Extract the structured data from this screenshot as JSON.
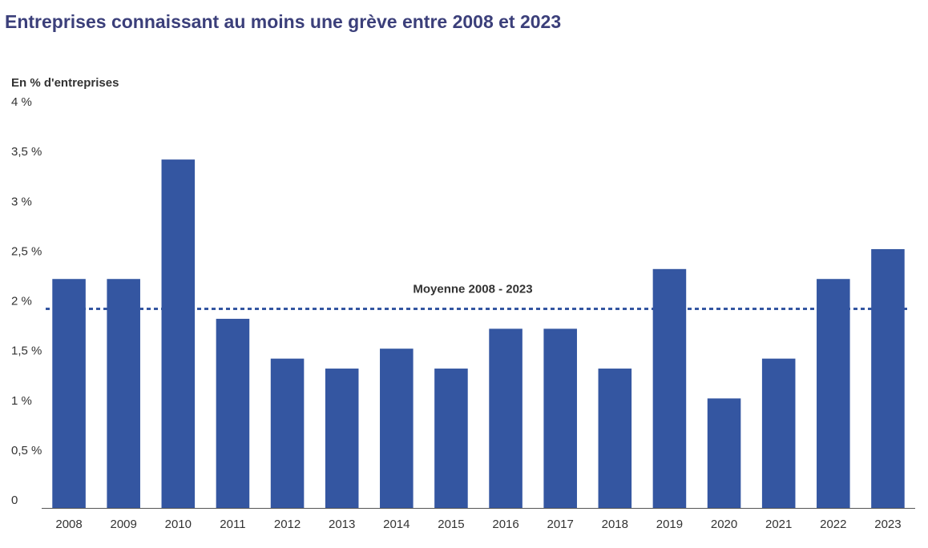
{
  "title": "Entreprises connaissant au moins une grève entre 2008 et 2023",
  "unit_label": "En % d'entreprises",
  "chart_data": {
    "type": "bar",
    "categories": [
      "2008",
      "2009",
      "2010",
      "2011",
      "2012",
      "2013",
      "2014",
      "2015",
      "2016",
      "2017",
      "2018",
      "2019",
      "2020",
      "2021",
      "2022",
      "2023"
    ],
    "values": [
      2.3,
      2.3,
      3.5,
      1.9,
      1.5,
      1.4,
      1.6,
      1.4,
      1.8,
      1.8,
      1.4,
      2.4,
      1.1,
      1.5,
      2.3,
      2.6
    ],
    "ylim": [
      0,
      4
    ],
    "yticks": [
      0,
      0.5,
      1,
      1.5,
      2,
      2.5,
      3,
      3.5,
      4
    ],
    "ytick_labels": [
      "0",
      "0,5 %",
      "1 %",
      "1,5 %",
      "2 %",
      "2,5 %",
      "3 %",
      "3,5 %",
      "4 %"
    ],
    "bar_color": "#3456a1",
    "reference_line": {
      "label": "Moyenne 2008 - 2023",
      "value": 2.0,
      "style": "dashed",
      "color": "#3456a1"
    },
    "grid": false
  }
}
